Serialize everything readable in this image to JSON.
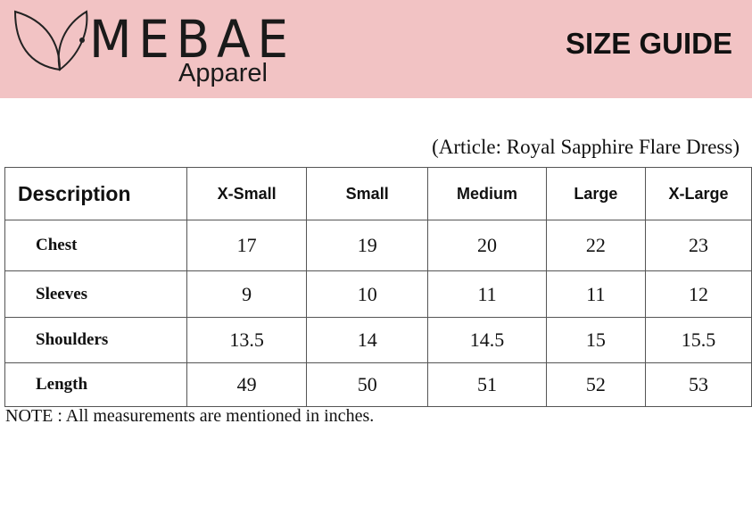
{
  "header": {
    "brand": "MEBAE",
    "tagline": "Apparel",
    "title": "SIZE GUIDE"
  },
  "article": "(Article: Royal Sapphire Flare Dress)",
  "table": {
    "columns": [
      "Description",
      "X-Small",
      "Small",
      "Medium",
      "Large",
      "X-Large"
    ],
    "rows": [
      [
        "Chest",
        17,
        19,
        20,
        22,
        23
      ],
      [
        "Sleeves",
        9,
        10,
        11,
        11,
        12
      ],
      [
        "Shoulders",
        13.5,
        14,
        14.5,
        15,
        15.5
      ],
      [
        "Length",
        49,
        50,
        51,
        52,
        53
      ]
    ]
  },
  "note": "NOTE : All measurements are mentioned in inches."
}
